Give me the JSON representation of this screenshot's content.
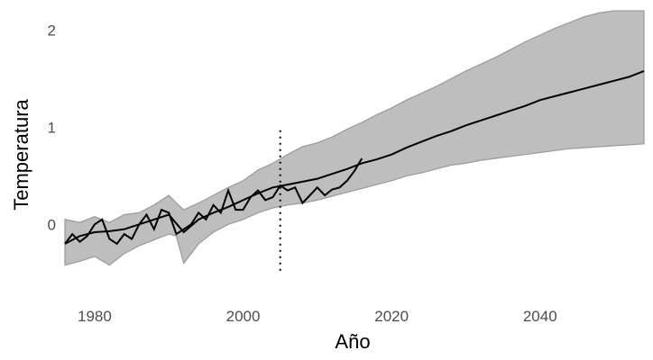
{
  "chart_data": {
    "type": "area",
    "xlabel": "Año",
    "ylabel": "Temperatura",
    "xlim": [
      1976,
      2054
    ],
    "ylim": [
      -0.72,
      2.2
    ],
    "x_ticks": [
      1980,
      2000,
      2020,
      2040
    ],
    "y_ticks": [
      0,
      1,
      2
    ],
    "grid": false,
    "legend": "none",
    "colors": {
      "band": "#bebebe",
      "band_edge": "#9a9a9a",
      "line": "#000000"
    },
    "vline": {
      "x": 2005,
      "y_from": -0.5,
      "y_to": 0.97,
      "style": "dotted"
    },
    "series": [
      {
        "kind": "band",
        "x": [
          1976,
          1978,
          1980,
          1982,
          1984,
          1986,
          1988,
          1990,
          1991,
          1992,
          1994,
          1996,
          1998,
          2000,
          2002,
          2004,
          2006,
          2008,
          2010,
          2012,
          2014,
          2016,
          2018,
          2020,
          2022,
          2024,
          2026,
          2028,
          2030,
          2032,
          2034,
          2036,
          2038,
          2040,
          2042,
          2044,
          2046,
          2048,
          2050,
          2052,
          2054
        ],
        "lower": [
          -0.42,
          -0.38,
          -0.33,
          -0.42,
          -0.3,
          -0.22,
          -0.16,
          -0.1,
          -0.12,
          -0.4,
          -0.2,
          -0.08,
          0.0,
          0.05,
          0.12,
          0.17,
          0.2,
          0.22,
          0.25,
          0.29,
          0.33,
          0.37,
          0.41,
          0.45,
          0.5,
          0.53,
          0.57,
          0.61,
          0.63,
          0.66,
          0.68,
          0.7,
          0.72,
          0.74,
          0.76,
          0.78,
          0.79,
          0.8,
          0.81,
          0.82,
          0.83
        ],
        "upper": [
          0.05,
          0.02,
          0.08,
          0.02,
          0.1,
          0.12,
          0.2,
          0.3,
          0.22,
          0.15,
          0.22,
          0.3,
          0.38,
          0.45,
          0.56,
          0.63,
          0.72,
          0.8,
          0.84,
          0.9,
          0.98,
          1.05,
          1.13,
          1.2,
          1.28,
          1.35,
          1.42,
          1.5,
          1.58,
          1.65,
          1.72,
          1.8,
          1.88,
          1.95,
          2.02,
          2.08,
          2.14,
          2.18,
          2.2,
          2.2,
          2.2
        ]
      },
      {
        "kind": "line",
        "x": [
          1976,
          1978,
          1980,
          1982,
          1984,
          1986,
          1988,
          1990,
          1992,
          1994,
          1996,
          1998,
          2000,
          2002,
          2004,
          2006,
          2008,
          2010,
          2012,
          2014,
          2016,
          2018,
          2020,
          2022,
          2024,
          2026,
          2028,
          2030,
          2032,
          2034,
          2036,
          2038,
          2040,
          2042,
          2044,
          2046,
          2048,
          2050,
          2052,
          2054
        ],
        "y": [
          -0.2,
          -0.12,
          -0.08,
          -0.07,
          -0.05,
          0.0,
          0.05,
          0.1,
          -0.08,
          0.05,
          0.12,
          0.18,
          0.25,
          0.32,
          0.38,
          0.41,
          0.44,
          0.47,
          0.52,
          0.57,
          0.63,
          0.67,
          0.72,
          0.79,
          0.85,
          0.91,
          0.96,
          1.02,
          1.07,
          1.12,
          1.17,
          1.22,
          1.28,
          1.32,
          1.36,
          1.4,
          1.44,
          1.48,
          1.52,
          1.58
        ]
      },
      {
        "kind": "line",
        "x": [
          1976,
          1977,
          1978,
          1979,
          1980,
          1981,
          1982,
          1983,
          1984,
          1985,
          1986,
          1987,
          1988,
          1989,
          1990,
          1991,
          1992,
          1993,
          1994,
          1995,
          1996,
          1997,
          1998,
          1999,
          2000,
          2001,
          2002,
          2003,
          2004,
          2005,
          2006,
          2007,
          2008,
          2009,
          2010,
          2011,
          2012,
          2013,
          2014,
          2015,
          2016
        ],
        "y": [
          -0.2,
          -0.1,
          -0.18,
          -0.12,
          0.0,
          0.05,
          -0.15,
          -0.2,
          -0.1,
          -0.15,
          0.0,
          0.1,
          -0.05,
          0.15,
          0.12,
          -0.1,
          -0.05,
          0.0,
          0.12,
          0.05,
          0.2,
          0.12,
          0.35,
          0.15,
          0.15,
          0.28,
          0.35,
          0.25,
          0.28,
          0.4,
          0.35,
          0.38,
          0.22,
          0.3,
          0.38,
          0.3,
          0.36,
          0.38,
          0.45,
          0.55,
          0.68
        ]
      }
    ]
  }
}
